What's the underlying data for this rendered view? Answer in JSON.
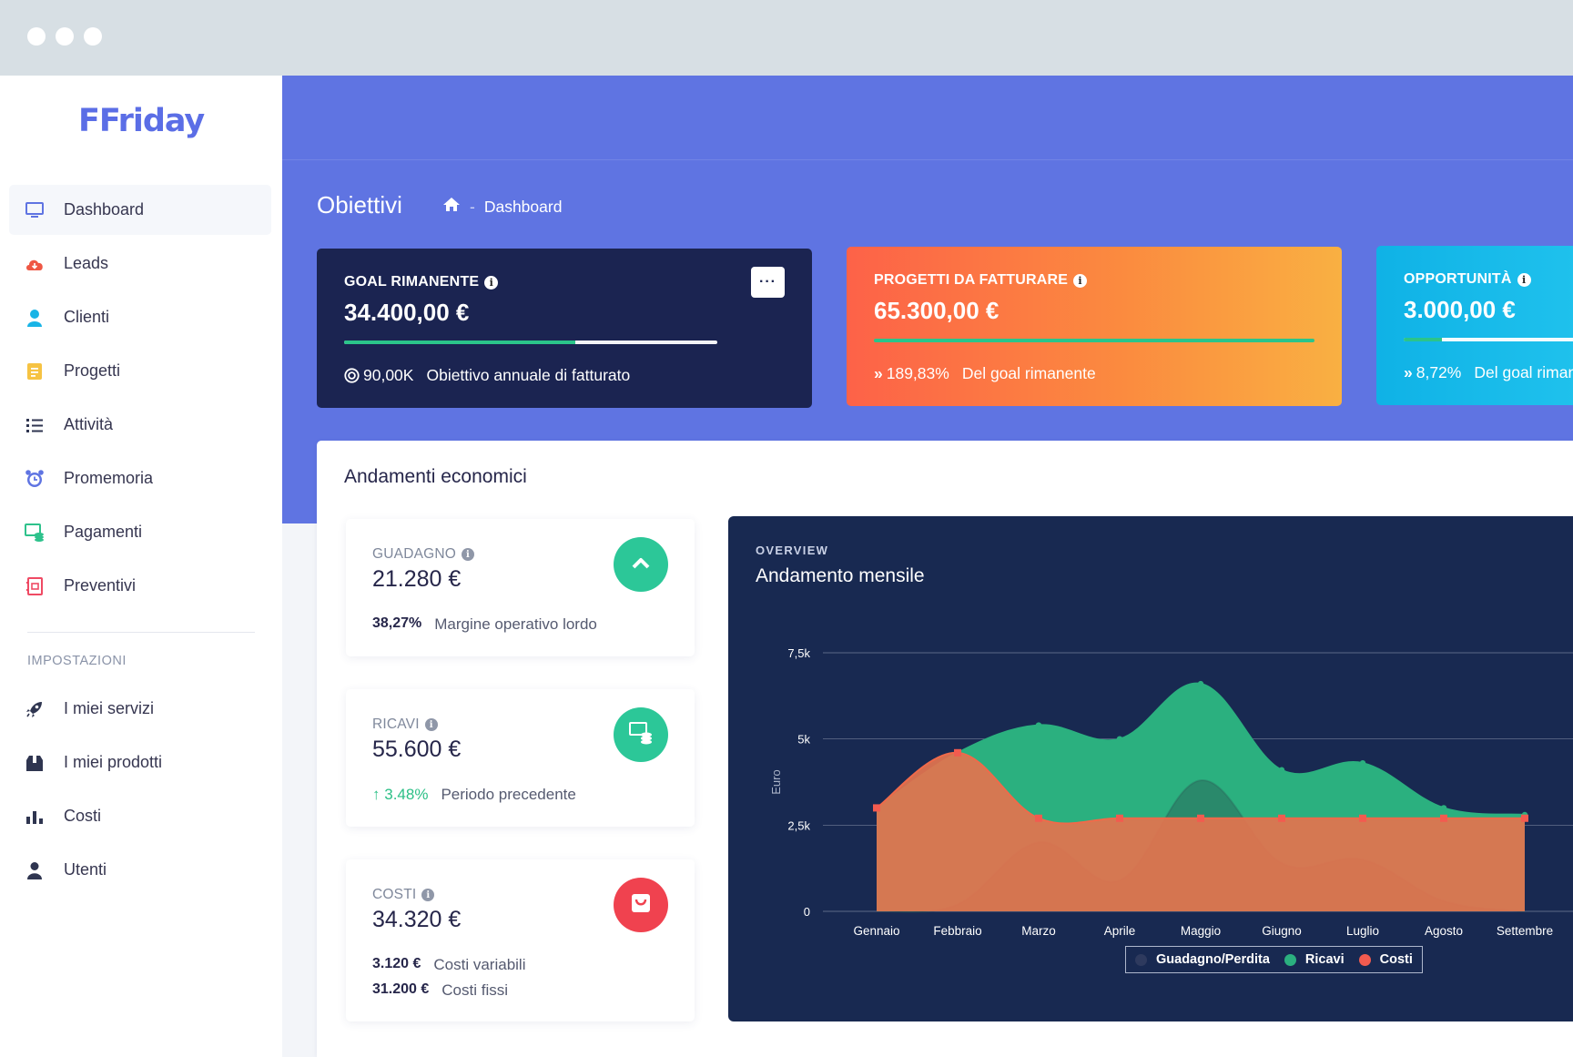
{
  "app": {
    "logo": "FFriday"
  },
  "sidebar": {
    "items": [
      {
        "label": "Dashboard"
      },
      {
        "label": "Leads"
      },
      {
        "label": "Clienti"
      },
      {
        "label": "Progetti"
      },
      {
        "label": "Attività"
      },
      {
        "label": "Promemoria"
      },
      {
        "label": "Pagamenti"
      },
      {
        "label": "Preventivi"
      }
    ],
    "section_title": "IMPOSTAZIONI",
    "settings": [
      {
        "label": "I miei servizi"
      },
      {
        "label": "I miei prodotti"
      },
      {
        "label": "Costi"
      },
      {
        "label": "Utenti"
      }
    ]
  },
  "header": {
    "title": "Obiettivi",
    "breadcrumb_sep": "-",
    "breadcrumb_current": "Dashboard"
  },
  "goals": {
    "remaining": {
      "label": "GOAL RIMANENTE",
      "value": "34.400,00 €",
      "progress": 0.62,
      "target": "90,00K",
      "target_label": "Obiettivo annuale di fatturato"
    },
    "to_invoice": {
      "label": "PROGETTI DA FATTURARE",
      "value": "65.300,00 €",
      "progress": 1.0,
      "percent": "189,83%",
      "percent_label": "Del goal rimanente"
    },
    "opportunities": {
      "label": "OPPORTUNITÀ",
      "value": "3.000,00 €",
      "progress": 0.087,
      "percent": "8,72%",
      "percent_label": "Del goal rimanente"
    }
  },
  "panel": {
    "title": "Andamenti economici",
    "profit": {
      "label": "GUADAGNO",
      "value": "21.280 €",
      "percent": "38,27%",
      "caption": "Margine operativo lordo"
    },
    "revenue": {
      "label": "RICAVI",
      "value": "55.600 €",
      "change": "3.48%",
      "caption": "Periodo precedente"
    },
    "costs": {
      "label": "COSTI",
      "value": "34.320 €",
      "variable": "3.120 €",
      "variable_label": "Costi variabili",
      "fixed": "31.200 €",
      "fixed_label": "Costi fissi"
    }
  },
  "overview": {
    "kicker": "OVERVIEW",
    "title": "Andamento mensile"
  },
  "colors": {
    "brand": "#5f74e2",
    "dark": "#182951",
    "green": "#2bb07f",
    "orange": "#e2734f",
    "red": "#f25b4f",
    "cyan": "#16b8e8"
  },
  "chart_data": {
    "type": "area",
    "ylabel": "Euro",
    "ylim": [
      0,
      7500
    ],
    "yticks": [
      "0",
      "2,5k",
      "5k",
      "7,5k"
    ],
    "categories": [
      "Gennaio",
      "Febbraio",
      "Marzo",
      "Aprile",
      "Maggio",
      "Giugno",
      "Luglio",
      "Agosto",
      "Settembre"
    ],
    "series": [
      {
        "name": "Guadagno/Perdita",
        "values": [
          0,
          200,
          2000,
          900,
          3800,
          1400,
          1500,
          300,
          -100
        ]
      },
      {
        "name": "Ricavi",
        "values": [
          3000,
          4600,
          5400,
          5000,
          6600,
          4100,
          4300,
          3000,
          2800
        ]
      },
      {
        "name": "Costi",
        "values": [
          3000,
          4600,
          2700,
          2700,
          2700,
          2700,
          2700,
          2700,
          2700
        ]
      }
    ],
    "legend": "bottom"
  }
}
